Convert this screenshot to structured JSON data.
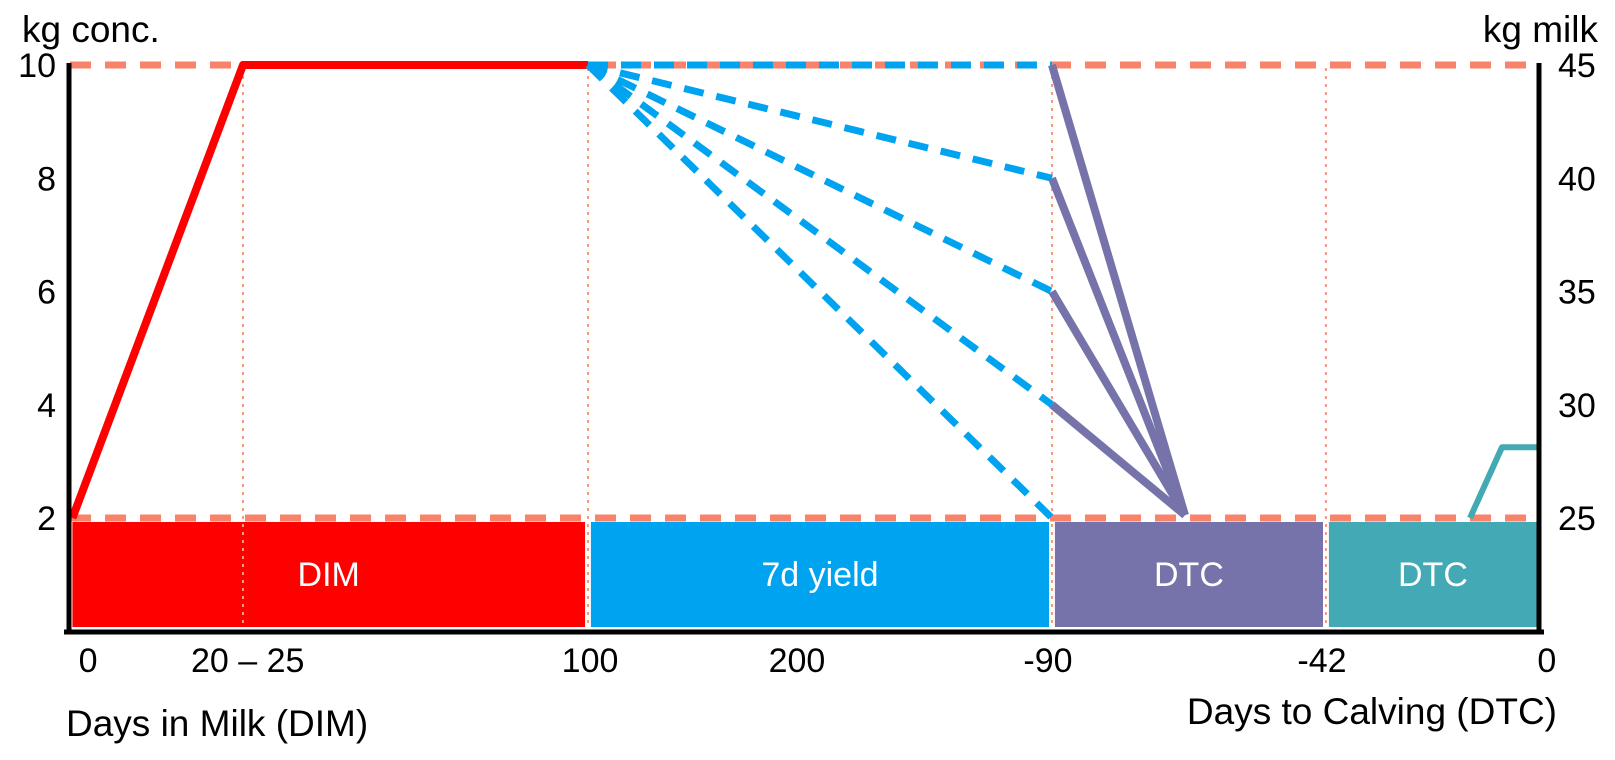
{
  "chart_data": {
    "type": "line",
    "description": "Concentrate feeding plan (kg conc.) across lactation (Days in Milk) and the dry period (Days to Calving), with milk-yield-dependent taper (kg milk right axis) and pre-calving ramp-up",
    "y_left": {
      "label": "kg conc.",
      "ticks": [
        10,
        8,
        6,
        4,
        2
      ],
      "range": [
        2,
        10
      ]
    },
    "y_right": {
      "label": "kg milk",
      "ticks": [
        45,
        40,
        35,
        30,
        25
      ],
      "range": [
        25,
        45
      ]
    },
    "x_axis": {
      "left_title": "Days in Milk (DIM)",
      "right_title": "Days to Calving (DTC)",
      "ticks": [
        {
          "label": "0",
          "f": 0.0136
        },
        {
          "label": "20 – 25",
          "f": 0.122
        },
        {
          "label": "100",
          "f": 0.3544
        },
        {
          "label": "200",
          "f": 0.4949
        },
        {
          "label": "-90",
          "f": 0.6653
        },
        {
          "label": "-42",
          "f": 0.8513
        },
        {
          "label": "0",
          "f": 1.004
        }
      ]
    },
    "bands": [
      {
        "label": "DIM",
        "f0": 0.003,
        "f1": 0.351,
        "color": "#FF0000"
      },
      {
        "label": "7d yield",
        "f0": 0.355,
        "f1": 0.666,
        "color": "#00A3F0"
      },
      {
        "label": "DTC",
        "f0": 0.67,
        "f1": 0.852,
        "color": "#7573A9"
      },
      {
        "label": "DTC",
        "f0": 0.856,
        "f1": 0.9973,
        "color": "#43A9B4"
      }
    ],
    "guides": {
      "h_dashed_values": [
        10,
        2
      ],
      "h_dashed_color": "#F8826A",
      "v_dotted_f": [
        0.1188,
        0.353,
        0.668,
        0.854
      ],
      "v_dotted_color": "#F59B84"
    },
    "series": [
      {
        "name": "concentrate-lactation-ramp",
        "color": "#FF0000",
        "style": "solid",
        "width": 8,
        "points": [
          {
            "x": "0 DIM",
            "f": 0.003,
            "v": 2
          },
          {
            "x": "20–25 DIM",
            "f": 0.1188,
            "v": 10
          },
          {
            "x": "100 DIM",
            "f": 0.353,
            "v": 10
          }
        ]
      },
      {
        "name": "yield-fan-45kg",
        "color": "#00A3F0",
        "style": "dashed",
        "width": 7,
        "points": [
          {
            "x": "100 DIM",
            "f": 0.353,
            "v": 10
          },
          {
            "x": "-90 DTC",
            "f": 0.668,
            "v": 10
          }
        ]
      },
      {
        "name": "yield-fan-40kg",
        "color": "#00A3F0",
        "style": "dashed",
        "width": 7,
        "points": [
          {
            "x": "100 DIM",
            "f": 0.353,
            "v": 10
          },
          {
            "x": "-90 DTC",
            "f": 0.668,
            "v": 8
          }
        ]
      },
      {
        "name": "yield-fan-35kg",
        "color": "#00A3F0",
        "style": "dashed",
        "width": 7,
        "points": [
          {
            "x": "100 DIM",
            "f": 0.353,
            "v": 10
          },
          {
            "x": "-90 DTC",
            "f": 0.668,
            "v": 6
          }
        ]
      },
      {
        "name": "yield-fan-30kg",
        "color": "#00A3F0",
        "style": "dashed",
        "width": 7,
        "points": [
          {
            "x": "100 DIM",
            "f": 0.353,
            "v": 10
          },
          {
            "x": "-90 DTC",
            "f": 0.668,
            "v": 4
          }
        ]
      },
      {
        "name": "yield-fan-25kg",
        "color": "#00A3F0",
        "style": "dashed",
        "width": 7,
        "points": [
          {
            "x": "100 DIM",
            "f": 0.353,
            "v": 10
          },
          {
            "x": "-90 DTC",
            "f": 0.668,
            "v": 2
          }
        ]
      },
      {
        "name": "dtc-taper-from-10",
        "color": "#7573A9",
        "style": "solid",
        "width": 8,
        "points": [
          {
            "x": "-90 DTC",
            "f": 0.668,
            "v": 10
          },
          {
            "f": 0.7583,
            "v": 2.05
          }
        ]
      },
      {
        "name": "dtc-taper-from-8",
        "color": "#7573A9",
        "style": "solid",
        "width": 8,
        "points": [
          {
            "x": "-90 DTC",
            "f": 0.668,
            "v": 8
          },
          {
            "f": 0.7583,
            "v": 2.05
          }
        ]
      },
      {
        "name": "dtc-taper-from-6",
        "color": "#7573A9",
        "style": "solid",
        "width": 8,
        "points": [
          {
            "x": "-90 DTC",
            "f": 0.668,
            "v": 6
          },
          {
            "f": 0.7583,
            "v": 2.05
          }
        ]
      },
      {
        "name": "dtc-taper-from-4",
        "color": "#7573A9",
        "style": "solid",
        "width": 8,
        "points": [
          {
            "x": "-90 DTC",
            "f": 0.668,
            "v": 4
          },
          {
            "f": 0.7583,
            "v": 2.05
          }
        ]
      },
      {
        "name": "pre-calving-ramp",
        "color": "#43A9B4",
        "style": "solid",
        "width": 6,
        "points": [
          {
            "f": 0.9518,
            "v": 2
          },
          {
            "f": 0.9735,
            "v": 3.25
          },
          {
            "x": "0 DTC",
            "f": 0.9973,
            "v": 3.25
          }
        ]
      }
    ],
    "axis_color": "#000000"
  }
}
